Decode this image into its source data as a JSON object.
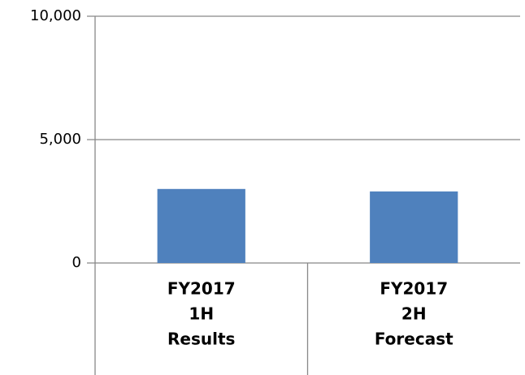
{
  "chart_data": {
    "type": "bar",
    "categories": [
      [
        "FY2017",
        "1H",
        "Results"
      ],
      [
        "FY2017",
        "2H",
        "Forecast"
      ]
    ],
    "values": [
      3000,
      2900
    ],
    "color": "#4f81bd",
    "ylim": [
      0,
      10000
    ],
    "yticks": [
      0,
      {
        "value": 5000,
        "label": "5,000"
      },
      {
        "value": 10000,
        "label": "10,000"
      }
    ],
    "grid": true
  }
}
